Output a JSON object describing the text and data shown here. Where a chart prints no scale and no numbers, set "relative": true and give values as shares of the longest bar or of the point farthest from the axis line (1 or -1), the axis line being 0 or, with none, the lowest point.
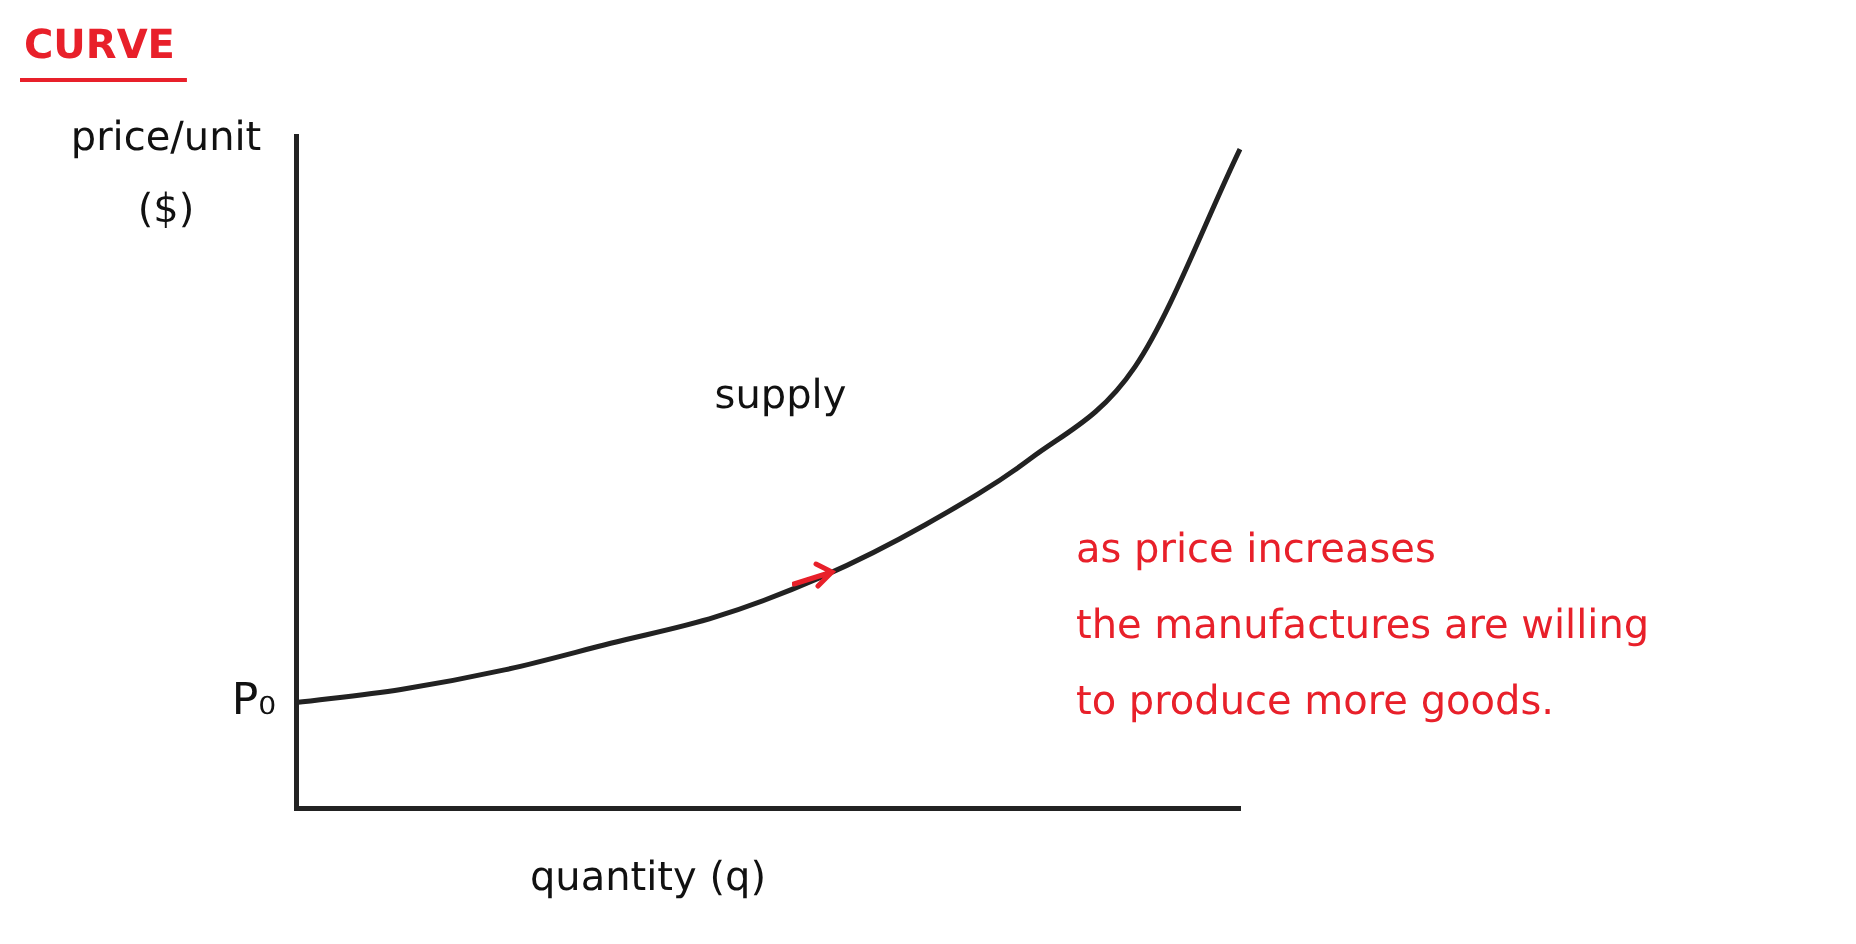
{
  "chart_data": {
    "type": "line",
    "title": "CURVE",
    "xlabel": "quantity (q)",
    "ylabel": "price/unit ($)",
    "relative": true,
    "categories": [
      null,
      null,
      null,
      null,
      null,
      null,
      null,
      null,
      null,
      null
    ],
    "series": [
      {
        "name": "supply",
        "color": "#222222",
        "values": [
          0.16,
          0.18,
          0.21,
          0.25,
          0.29,
          0.35,
          0.43,
          0.53,
          0.67,
          1.0
        ]
      }
    ],
    "annotations": [
      "P₀",
      "as price increases\nthe manufactures are willing\nto produce more goods."
    ],
    "grid": false,
    "legend": false,
    "marker": "none",
    "line_style": "solid"
  }
}
